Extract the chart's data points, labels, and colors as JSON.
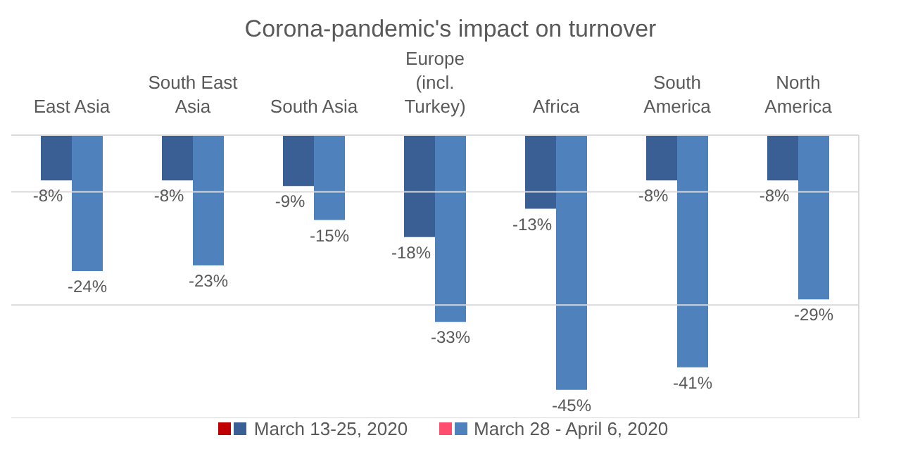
{
  "chart_data": {
    "type": "bar",
    "title": "Corona-pandemic's impact on turnover",
    "categories": [
      "East Asia",
      "South East Asia",
      "South Asia",
      "Europe (incl. Turkey)",
      "Africa",
      "South America",
      "North America"
    ],
    "series": [
      {
        "name": "March 13-25, 2020",
        "color": "#3a5f95",
        "values": [
          -8,
          -8,
          -9,
          -18,
          -13,
          -8,
          -8
        ],
        "value_labels": [
          "-8%",
          "-8%",
          "-9%",
          "-18%",
          "-13%",
          "-8%",
          "-8%"
        ]
      },
      {
        "name": "March 28 - April 6, 2020",
        "color": "#4f81bd",
        "values": [
          -24,
          -23,
          -15,
          -33,
          -45,
          -41,
          -29
        ],
        "value_labels": [
          "-24%",
          "-23%",
          "-15%",
          "-33%",
          "-45%",
          "-41%",
          "-29%"
        ]
      }
    ],
    "ylim": [
      -50,
      0
    ],
    "yticks": [
      {
        "value": -50,
        "label": null
      },
      {
        "value": -30,
        "label": null
      },
      {
        "value": -10,
        "label": null
      }
    ],
    "grid": "y",
    "legend": "bottom",
    "tick_labels": "x"
  }
}
